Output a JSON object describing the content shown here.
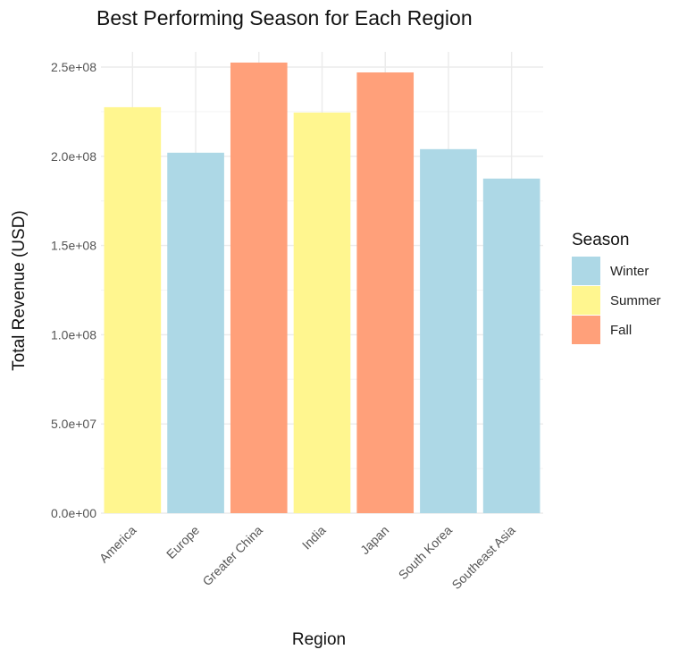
{
  "chart_data": {
    "type": "bar",
    "title": "Best Performing Season for Each Region",
    "xlabel": "Region",
    "ylabel": "Total Revenue (USD)",
    "ylim": [
      0,
      250000000
    ],
    "yticks": [
      0,
      50000000,
      100000000,
      150000000,
      200000000,
      250000000
    ],
    "ytick_labels": [
      "0.0e+00",
      "5.0e+07",
      "1.0e+08",
      "1.5e+08",
      "2.0e+08",
      "2.5e+08"
    ],
    "grid": true,
    "legend_position": "right",
    "legend_title": "Season",
    "categories": [
      "America",
      "Europe",
      "Greater China",
      "India",
      "Japan",
      "South Korea",
      "Southeast Asia"
    ],
    "values": [
      227500000,
      202000000,
      252500000,
      224500000,
      247000000,
      204000000,
      187500000
    ],
    "seasons": [
      "Summer",
      "Winter",
      "Fall",
      "Summer",
      "Fall",
      "Winter",
      "Winter"
    ],
    "legend": [
      {
        "label": "Winter",
        "color": "#add8e6"
      },
      {
        "label": "Summer",
        "color": "#fff68f"
      },
      {
        "label": "Fall",
        "color": "#ffa07a"
      }
    ]
  }
}
